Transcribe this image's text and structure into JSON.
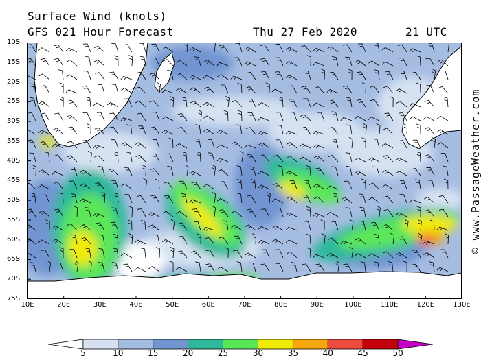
{
  "header": {
    "title": "Surface Wind (knots)",
    "subtitle": "GFS 021 Hour Forecast",
    "date": "Thu 27 Feb 2020",
    "time": "21 UTC"
  },
  "credit": "© www.PassageWeather.com",
  "lat_labels": [
    "10S",
    "15S",
    "20S",
    "25S",
    "30S",
    "35S",
    "40S",
    "45S",
    "50S",
    "55S",
    "60S",
    "65S",
    "70S",
    "75S"
  ],
  "lon_labels": [
    "10E",
    "20E",
    "30E",
    "40E",
    "50E",
    "60E",
    "70E",
    "80E",
    "90E",
    "100E",
    "110E",
    "120E",
    "130E"
  ],
  "colorbar": {
    "labels": [
      "5",
      "10",
      "15",
      "20",
      "25",
      "30",
      "35",
      "40",
      "45",
      "50"
    ],
    "colors": [
      "#ffffff",
      "#d6e2f2",
      "#a6bde2",
      "#7295d2",
      "#2fb89c",
      "#5be65a",
      "#f0ea0a",
      "#f6a60f",
      "#ee4a3e",
      "#c4000a",
      "#c400c4"
    ]
  },
  "map_colors": {
    "ocean_base": "#a6bde2",
    "land": "#ffffff",
    "coast": "#000000"
  }
}
